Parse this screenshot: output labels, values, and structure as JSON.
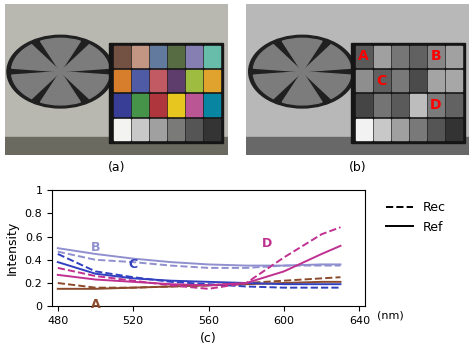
{
  "images": [
    {
      "label": "(a)"
    },
    {
      "label": "(b)",
      "patch_labels": [
        "A",
        "B",
        "C",
        "D"
      ]
    }
  ],
  "chart_data": {
    "type": "line",
    "label": "(c)",
    "x_label": "(nm)",
    "y_label": "Intensity",
    "x": [
      480,
      500,
      520,
      540,
      560,
      580,
      600,
      620,
      630
    ],
    "xlim": [
      477,
      643
    ],
    "xticks": [
      480,
      520,
      560,
      600,
      640
    ],
    "ylim": [
      0,
      1
    ],
    "yticks": [
      0,
      0.2,
      0.4,
      0.6,
      0.8,
      1
    ],
    "legend": "upper left",
    "legend_entries": [
      {
        "name": "Rec",
        "line_style": "dashed"
      },
      {
        "name": "Ref",
        "line_style": "solid"
      }
    ],
    "series": [
      {
        "name": "A",
        "color": "#8b4a2b",
        "line_style": "dashed",
        "values": [
          0.2,
          0.16,
          0.16,
          0.17,
          0.18,
          0.2,
          0.22,
          0.24,
          0.25
        ]
      },
      {
        "name": "A",
        "color": "#8b4a2b",
        "line_style": "solid",
        "values": [
          0.15,
          0.15,
          0.16,
          0.17,
          0.18,
          0.19,
          0.2,
          0.21,
          0.21
        ]
      },
      {
        "name": "B",
        "color": "#9090d0",
        "line_style": "dashed",
        "values": [
          0.47,
          0.4,
          0.38,
          0.35,
          0.33,
          0.33,
          0.35,
          0.35,
          0.35
        ]
      },
      {
        "name": "B",
        "color": "#9090d0",
        "line_style": "solid",
        "values": [
          0.5,
          0.45,
          0.41,
          0.38,
          0.36,
          0.35,
          0.35,
          0.36,
          0.36
        ]
      },
      {
        "name": "C",
        "color": "#3040c0",
        "line_style": "dashed",
        "values": [
          0.45,
          0.3,
          0.25,
          0.21,
          0.19,
          0.17,
          0.16,
          0.16,
          0.16
        ]
      },
      {
        "name": "C",
        "color": "#3040c0",
        "line_style": "solid",
        "values": [
          0.38,
          0.28,
          0.24,
          0.22,
          0.21,
          0.2,
          0.19,
          0.19,
          0.19
        ]
      },
      {
        "name": "D",
        "color": "#c03090",
        "line_style": "dashed",
        "values": [
          0.33,
          0.26,
          0.22,
          0.18,
          0.15,
          0.2,
          0.42,
          0.62,
          0.68
        ]
      },
      {
        "name": "D",
        "color": "#c03090",
        "line_style": "solid",
        "values": [
          0.27,
          0.23,
          0.21,
          0.19,
          0.18,
          0.2,
          0.3,
          0.45,
          0.52
        ]
      }
    ]
  }
}
